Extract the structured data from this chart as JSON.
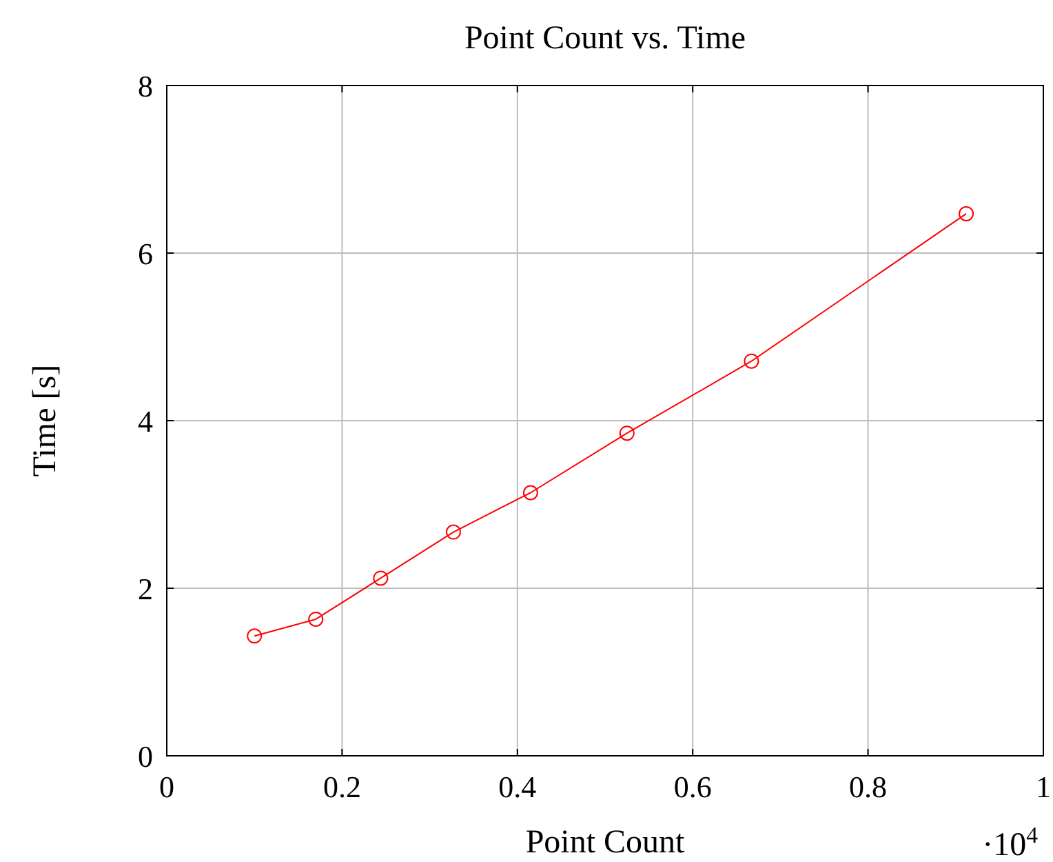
{
  "chart_data": {
    "type": "line",
    "title": "Point Count vs. Time",
    "xlabel": "Point Count",
    "ylabel": "Time [s]",
    "x": [
      0.1,
      0.17,
      0.244,
      0.327,
      0.415,
      0.525,
      0.667,
      0.912
    ],
    "series": [
      {
        "color": "#ff0000",
        "values": [
          1.43,
          1.63,
          2.12,
          2.67,
          3.14,
          3.85,
          4.71,
          6.47
        ]
      }
    ],
    "xlim": [
      0,
      1
    ],
    "xticks": [
      0,
      0.2,
      0.4,
      0.6,
      0.8,
      1
    ],
    "ylim": [
      0,
      8
    ],
    "yticks": [
      0,
      2,
      4,
      6,
      8
    ],
    "grid": true,
    "marker": "circle",
    "line_style": "solid",
    "annotations": [
      "·10$^{4}$"
    ]
  }
}
